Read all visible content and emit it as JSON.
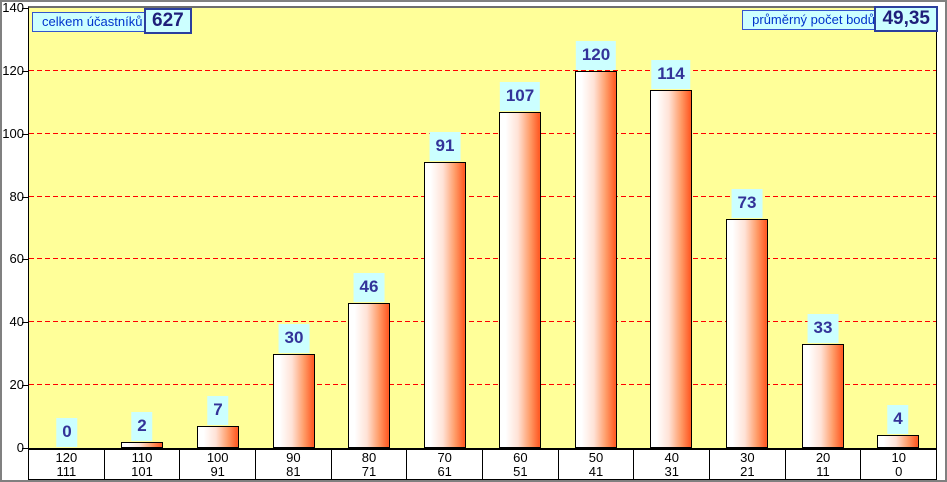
{
  "header": {
    "total": {
      "label": "celkem účastníků",
      "value": "627"
    },
    "average": {
      "label": "průměrný počet bodů",
      "value": "49,35"
    }
  },
  "chart_data": {
    "type": "bar",
    "categories": [
      {
        "top": "120",
        "bottom": "111"
      },
      {
        "top": "110",
        "bottom": "101"
      },
      {
        "top": "100",
        "bottom": "91"
      },
      {
        "top": "90",
        "bottom": "81"
      },
      {
        "top": "80",
        "bottom": "71"
      },
      {
        "top": "70",
        "bottom": "61"
      },
      {
        "top": "60",
        "bottom": "51"
      },
      {
        "top": "50",
        "bottom": "41"
      },
      {
        "top": "40",
        "bottom": "31"
      },
      {
        "top": "30",
        "bottom": "21"
      },
      {
        "top": "20",
        "bottom": "11"
      },
      {
        "top": "10",
        "bottom": "0"
      }
    ],
    "values": [
      0,
      2,
      7,
      30,
      46,
      91,
      107,
      120,
      114,
      73,
      33,
      4
    ],
    "ylim": [
      0,
      140
    ],
    "yticks": [
      0,
      20,
      40,
      60,
      80,
      100,
      120,
      140
    ],
    "grid": "horizontal-dashed",
    "legend_position": "none"
  },
  "colors": {
    "plot_bg": "#FFFF99",
    "grid_line": "#FF0000",
    "bar_gradient_start": "#FFFFFF",
    "bar_gradient_end": "#FF5E28",
    "bar_border": "#000000",
    "value_label_bg": "#CCFFFF",
    "value_label_text": "#333399",
    "legend_label_bg": "#CCFFFF",
    "legend_label_text": "#0033CC",
    "legend_label_border": "#3355CC",
    "legend_value_text": "#1F1F7A",
    "axis_text": "#000000",
    "window_border": "#808080"
  }
}
